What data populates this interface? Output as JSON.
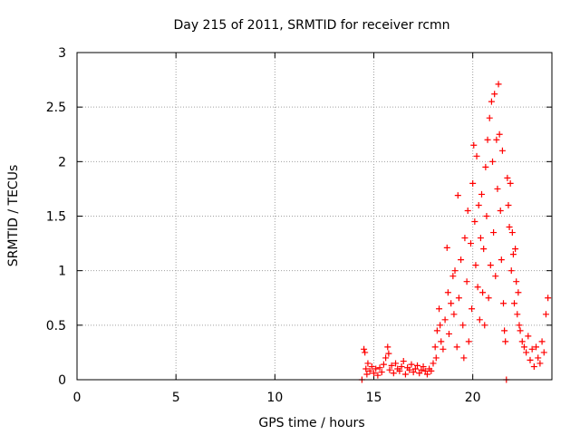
{
  "chart_data": {
    "type": "scatter",
    "title": "Day 215 of 2011, SRMTID for receiver rcmn",
    "xlabel": "GPS time / hours",
    "ylabel": "SRMTID / TECUs",
    "xlim": [
      0,
      24
    ],
    "ylim": [
      0,
      3
    ],
    "xticks": [
      "0",
      "5",
      "10",
      "15",
      "20"
    ],
    "yticks": [
      "0",
      "0.5",
      "1",
      "1.5",
      "2",
      "2.5",
      "3"
    ],
    "grid": true,
    "marker": "+",
    "series_color": "#ff0000",
    "points": [
      [
        14.4,
        0.0
      ],
      [
        14.5,
        0.28
      ],
      [
        14.55,
        0.25
      ],
      [
        14.6,
        0.1
      ],
      [
        14.65,
        0.05
      ],
      [
        14.7,
        0.15
      ],
      [
        14.8,
        0.08
      ],
      [
        14.9,
        0.12
      ],
      [
        15.0,
        0.06
      ],
      [
        15.1,
        0.1
      ],
      [
        15.2,
        0.04
      ],
      [
        15.3,
        0.11
      ],
      [
        15.4,
        0.07
      ],
      [
        15.5,
        0.14
      ],
      [
        15.6,
        0.2
      ],
      [
        15.7,
        0.3
      ],
      [
        15.75,
        0.24
      ],
      [
        15.8,
        0.09
      ],
      [
        15.9,
        0.13
      ],
      [
        16.0,
        0.06
      ],
      [
        16.1,
        0.15
      ],
      [
        16.2,
        0.1
      ],
      [
        16.3,
        0.08
      ],
      [
        16.4,
        0.12
      ],
      [
        16.5,
        0.17
      ],
      [
        16.6,
        0.05
      ],
      [
        16.7,
        0.11
      ],
      [
        16.8,
        0.09
      ],
      [
        16.9,
        0.14
      ],
      [
        17.0,
        0.07
      ],
      [
        17.1,
        0.1
      ],
      [
        17.2,
        0.13
      ],
      [
        17.3,
        0.06
      ],
      [
        17.4,
        0.09
      ],
      [
        17.5,
        0.12
      ],
      [
        17.6,
        0.08
      ],
      [
        17.7,
        0.05
      ],
      [
        17.8,
        0.1
      ],
      [
        17.9,
        0.08
      ],
      [
        18.0,
        0.15
      ],
      [
        18.1,
        0.3
      ],
      [
        18.15,
        0.2
      ],
      [
        18.2,
        0.45
      ],
      [
        18.3,
        0.65
      ],
      [
        18.35,
        0.5
      ],
      [
        18.4,
        0.35
      ],
      [
        18.5,
        0.28
      ],
      [
        18.6,
        0.55
      ],
      [
        18.7,
        1.21
      ],
      [
        18.75,
        0.8
      ],
      [
        18.8,
        0.42
      ],
      [
        18.9,
        0.7
      ],
      [
        19.0,
        0.95
      ],
      [
        19.05,
        0.6
      ],
      [
        19.1,
        1.0
      ],
      [
        19.2,
        0.3
      ],
      [
        19.25,
        1.69
      ],
      [
        19.3,
        0.75
      ],
      [
        19.4,
        1.1
      ],
      [
        19.5,
        0.5
      ],
      [
        19.55,
        0.2
      ],
      [
        19.6,
        1.3
      ],
      [
        19.7,
        0.9
      ],
      [
        19.75,
        1.55
      ],
      [
        19.8,
        0.35
      ],
      [
        19.9,
        1.25
      ],
      [
        19.95,
        0.65
      ],
      [
        20.0,
        1.8
      ],
      [
        20.05,
        2.15
      ],
      [
        20.1,
        1.45
      ],
      [
        20.15,
        1.05
      ],
      [
        20.2,
        2.05
      ],
      [
        20.25,
        0.85
      ],
      [
        20.3,
        1.6
      ],
      [
        20.35,
        0.55
      ],
      [
        20.4,
        1.3
      ],
      [
        20.45,
        1.7
      ],
      [
        20.5,
        0.8
      ],
      [
        20.55,
        1.2
      ],
      [
        20.6,
        0.5
      ],
      [
        20.65,
        1.95
      ],
      [
        20.7,
        1.5
      ],
      [
        20.75,
        2.2
      ],
      [
        20.8,
        0.75
      ],
      [
        20.85,
        2.4
      ],
      [
        20.9,
        1.05
      ],
      [
        20.95,
        2.55
      ],
      [
        21.0,
        2.0
      ],
      [
        21.05,
        1.35
      ],
      [
        21.1,
        2.62
      ],
      [
        21.15,
        0.95
      ],
      [
        21.2,
        2.2
      ],
      [
        21.25,
        1.75
      ],
      [
        21.3,
        2.71
      ],
      [
        21.35,
        2.25
      ],
      [
        21.4,
        1.55
      ],
      [
        21.45,
        1.1
      ],
      [
        21.5,
        2.1
      ],
      [
        21.55,
        0.7
      ],
      [
        21.6,
        0.45
      ],
      [
        21.65,
        0.35
      ],
      [
        21.7,
        0.0
      ],
      [
        21.75,
        1.85
      ],
      [
        21.8,
        1.6
      ],
      [
        21.85,
        1.4
      ],
      [
        21.9,
        1.8
      ],
      [
        21.95,
        1.0
      ],
      [
        22.0,
        1.35
      ],
      [
        22.05,
        1.15
      ],
      [
        22.1,
        0.7
      ],
      [
        22.15,
        1.2
      ],
      [
        22.2,
        0.9
      ],
      [
        22.25,
        0.6
      ],
      [
        22.3,
        0.8
      ],
      [
        22.35,
        0.5
      ],
      [
        22.4,
        0.45
      ],
      [
        22.5,
        0.35
      ],
      [
        22.6,
        0.3
      ],
      [
        22.7,
        0.25
      ],
      [
        22.8,
        0.4
      ],
      [
        22.9,
        0.18
      ],
      [
        23.0,
        0.28
      ],
      [
        23.1,
        0.12
      ],
      [
        23.2,
        0.3
      ],
      [
        23.3,
        0.2
      ],
      [
        23.4,
        0.15
      ],
      [
        23.5,
        0.35
      ],
      [
        23.6,
        0.25
      ],
      [
        23.7,
        0.6
      ],
      [
        23.8,
        0.75
      ]
    ]
  }
}
